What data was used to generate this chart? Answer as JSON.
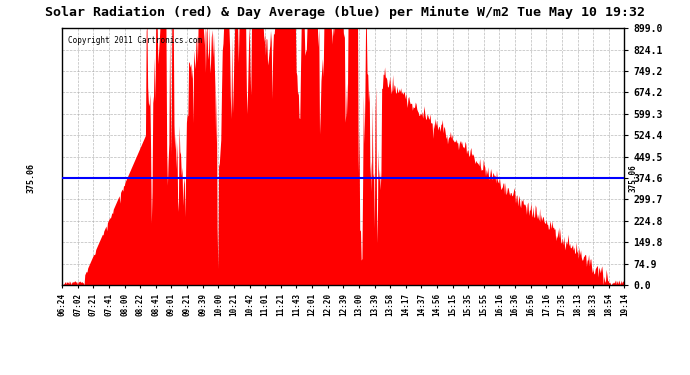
{
  "title": "Solar Radiation (red) & Day Average (blue) per Minute W/m2 Tue May 10 19:32",
  "copyright_text": "Copyright 2011 Cartronics.com",
  "avg_value": 375.06,
  "y_ticks": [
    0.0,
    74.9,
    149.8,
    224.8,
    299.7,
    374.6,
    449.5,
    524.4,
    599.3,
    674.2,
    749.2,
    824.1,
    899.0
  ],
  "y_max": 899.0,
  "y_min": 0.0,
  "avg_label": "375.06",
  "x_labels": [
    "06:24",
    "07:02",
    "07:21",
    "07:41",
    "08:00",
    "08:22",
    "08:41",
    "09:01",
    "09:21",
    "09:39",
    "10:00",
    "10:21",
    "10:42",
    "11:01",
    "11:21",
    "11:43",
    "12:01",
    "12:20",
    "12:39",
    "13:00",
    "13:39",
    "13:58",
    "14:17",
    "14:37",
    "14:56",
    "15:15",
    "15:35",
    "15:55",
    "16:16",
    "16:36",
    "16:56",
    "17:16",
    "17:35",
    "18:13",
    "18:33",
    "18:54",
    "19:14"
  ],
  "background_color": "#ffffff",
  "plot_bg_color": "#ffffff",
  "fill_color": "#ff0000",
  "line_color": "#0000ff",
  "grid_color": "#aaaaaa",
  "border_color": "#000000",
  "title_fontsize": 9.5,
  "tick_fontsize": 7,
  "xlabel_fontsize": 5.5
}
